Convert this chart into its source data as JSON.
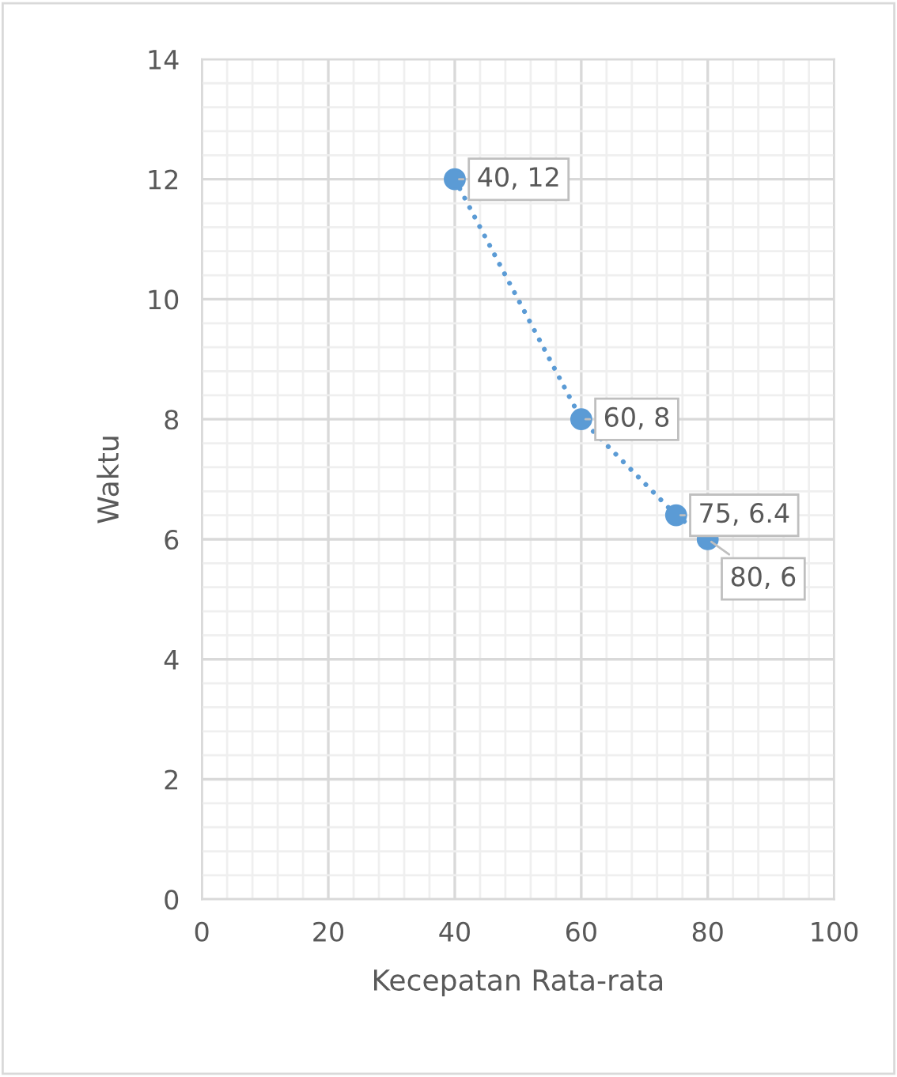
{
  "chart_data": {
    "type": "scatter",
    "xlabel": "Kecepatan Rata-rata",
    "ylabel": "Waktu",
    "x": [
      40,
      60,
      75,
      80
    ],
    "series": [
      {
        "color": "#5b9bd5",
        "values": [
          12,
          8,
          6.4,
          6
        ],
        "value_labels": [
          "40, 12",
          "60, 8",
          "75, 6.4",
          "80, 6"
        ]
      }
    ],
    "line_style": "dotted",
    "marker": "circle",
    "grid": true,
    "xlim": [
      0,
      100
    ],
    "xticks": [
      0,
      20,
      40,
      60,
      80,
      100
    ],
    "ylim": [
      0,
      14
    ],
    "yticks": [
      0,
      2,
      4,
      6,
      8,
      10,
      12,
      14
    ]
  }
}
